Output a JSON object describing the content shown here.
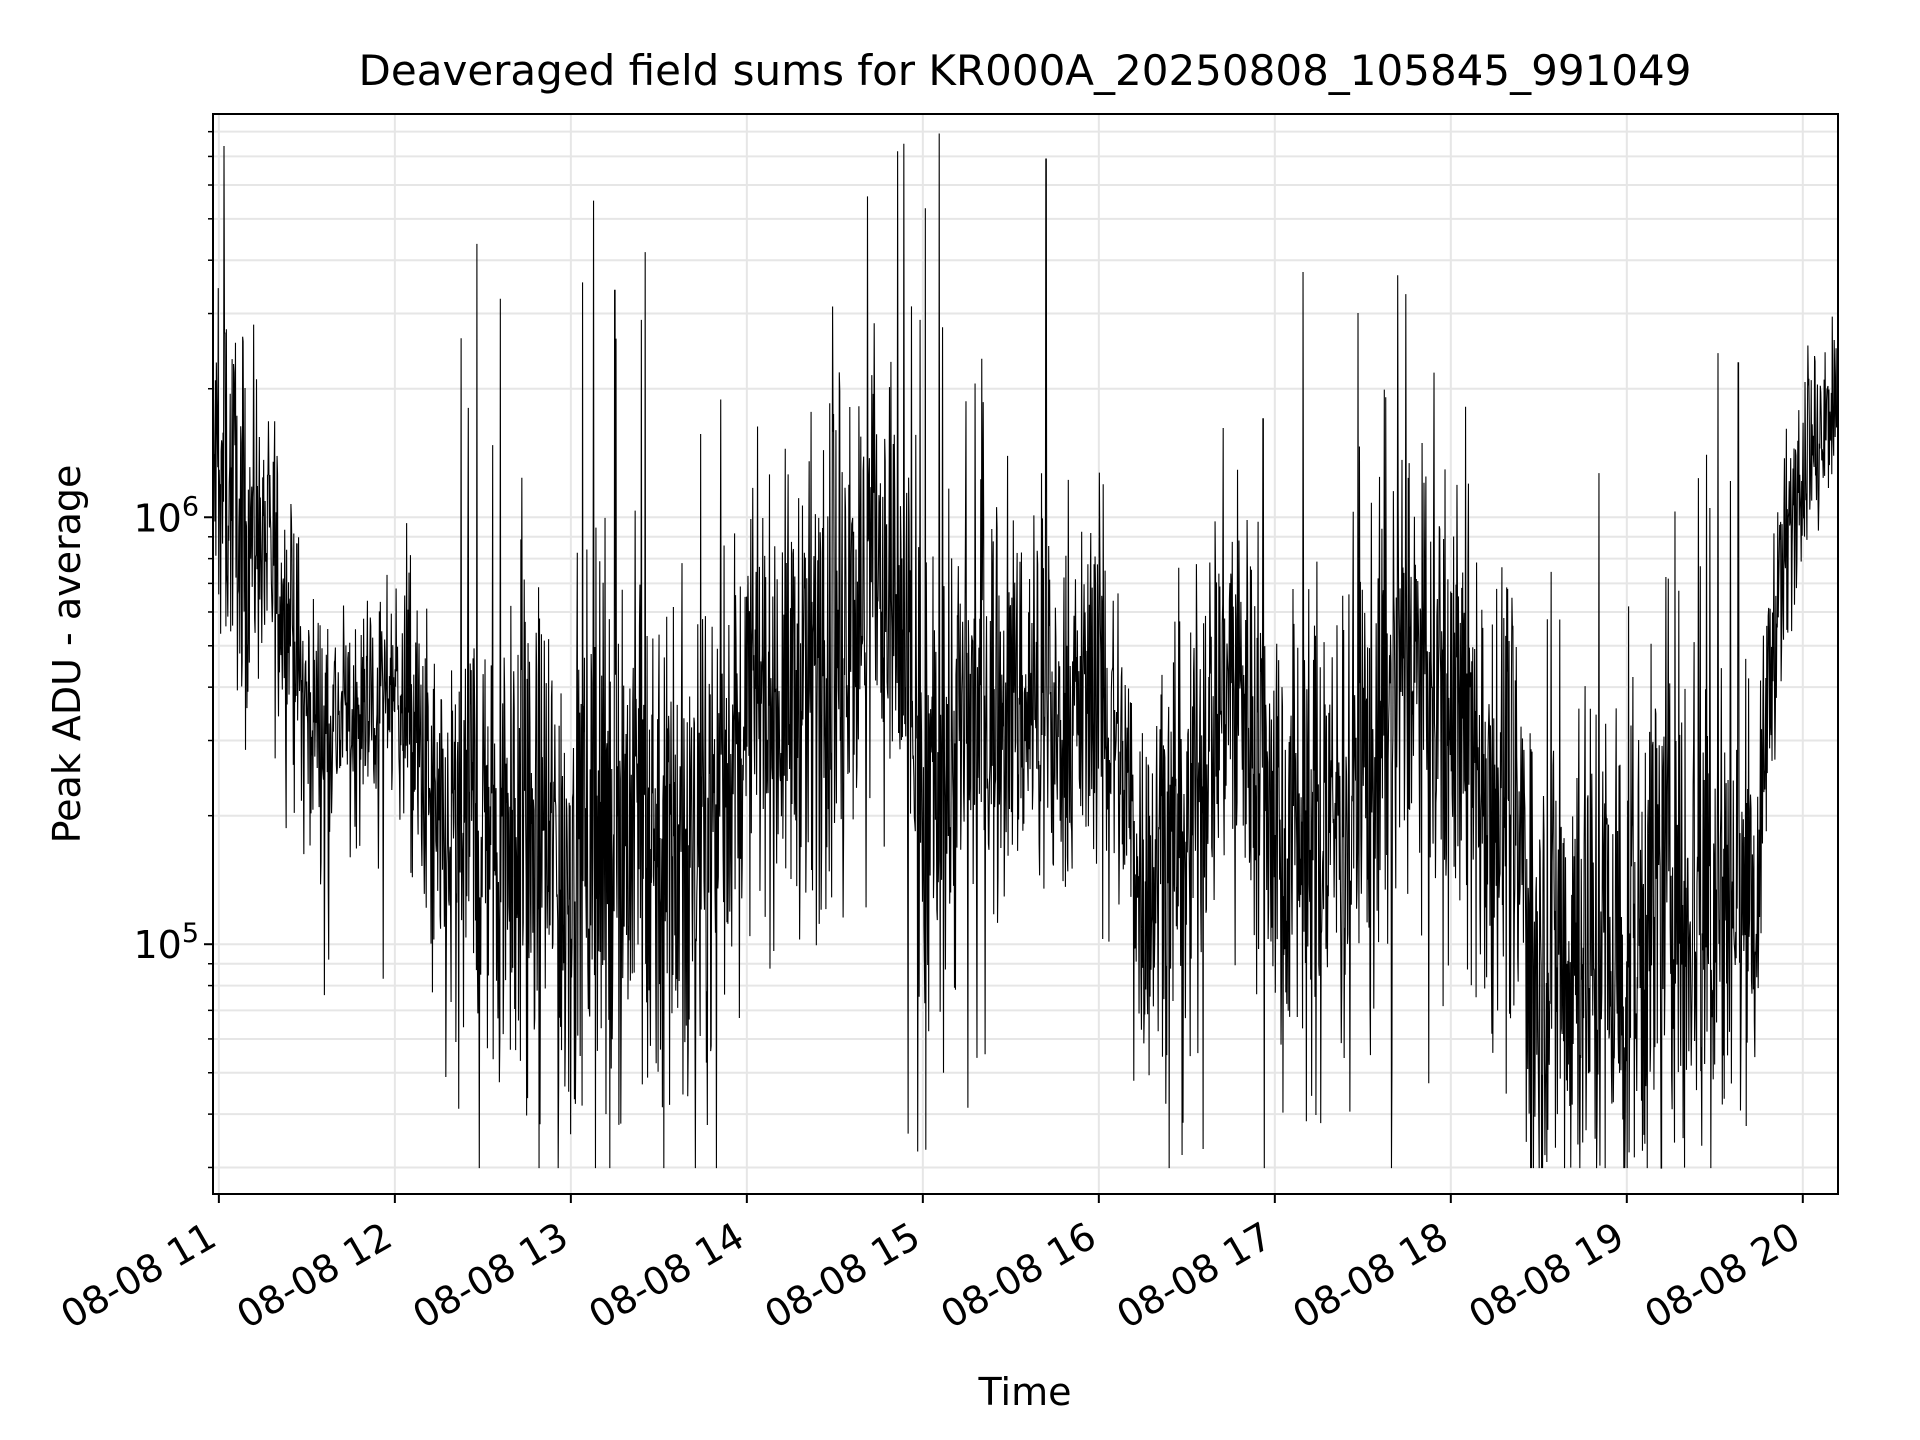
{
  "chart_data": {
    "type": "line",
    "title": "Deaveraged field sums for KR000A_20250808_105845_991049",
    "xlabel": "Time",
    "ylabel": "Peak ADU - average",
    "x_scale": "time",
    "y_scale": "log",
    "xlim": [
      "2025-08-08 10:58",
      "2025-08-08 20:12"
    ],
    "ylim": [
      26000,
      8800000
    ],
    "x_tick_labels": [
      "08-08 11",
      "08-08 12",
      "08-08 13",
      "08-08 14",
      "08-08 15",
      "08-08 16",
      "08-08 17",
      "08-08 18",
      "08-08 19",
      "08-08 20"
    ],
    "y_tick_labels": [
      {
        "base": "10",
        "exp": "5"
      },
      {
        "base": "10",
        "exp": "6"
      }
    ],
    "grid": true,
    "legend": "none",
    "line_color": "#000000",
    "series": [
      {
        "x": [
          "2025-08-08 10:58",
          "2025-08-08 11:15",
          "2025-08-08 11:30",
          "2025-08-08 11:45",
          "2025-08-08 12:00",
          "2025-08-08 12:15",
          "2025-08-08 12:30",
          "2025-08-08 12:45",
          "2025-08-08 13:00",
          "2025-08-08 13:15",
          "2025-08-08 13:30",
          "2025-08-08 13:45",
          "2025-08-08 14:00",
          "2025-08-08 14:15",
          "2025-08-08 14:30",
          "2025-08-08 14:45",
          "2025-08-08 15:00",
          "2025-08-08 15:15",
          "2025-08-08 15:30",
          "2025-08-08 15:45",
          "2025-08-08 16:00",
          "2025-08-08 16:15",
          "2025-08-08 16:30",
          "2025-08-08 16:45",
          "2025-08-08 17:00",
          "2025-08-08 17:15",
          "2025-08-08 17:30",
          "2025-08-08 17:45",
          "2025-08-08 18:00",
          "2025-08-08 18:15",
          "2025-08-08 18:30",
          "2025-08-08 18:45",
          "2025-08-08 19:00",
          "2025-08-08 19:15",
          "2025-08-08 19:30",
          "2025-08-08 19:45",
          "2025-08-08 20:00",
          "2025-08-08 20:12"
        ],
        "y": [
          1300000,
          900000,
          350000,
          330000,
          420000,
          150000,
          200000,
          180000,
          150000,
          200000,
          180000,
          160000,
          350000,
          380000,
          500000,
          800000,
          200000,
          320000,
          380000,
          320000,
          400000,
          130000,
          180000,
          450000,
          200000,
          180000,
          250000,
          450000,
          320000,
          250000,
          90000,
          100000,
          90000,
          150000,
          120000,
          130000,
          1300000,
          1900000
        ],
        "spread": [
          2.5,
          2.2,
          1.8,
          1.7,
          1.6,
          2.8,
          3.5,
          3.5,
          3.8,
          4.0,
          3.8,
          3.2,
          2.5,
          3.0,
          3.5,
          3.0,
          4.0,
          3.2,
          2.5,
          2.3,
          2.2,
          2.5,
          2.8,
          2.8,
          3.2,
          3.5,
          3.5,
          3.0,
          3.0,
          3.5,
          3.5,
          4.0,
          4.0,
          4.2,
          4.0,
          2.0,
          1.5,
          1.5
        ],
        "spikes": [
          {
            "x": "2025-08-08 11:02",
            "y": 2700000
          },
          {
            "x": "2025-08-08 11:36",
            "y": 76000
          },
          {
            "x": "2025-08-08 11:56",
            "y": 83000
          },
          {
            "x": "2025-08-08 12:36",
            "y": 3250000
          },
          {
            "x": "2025-08-08 13:04",
            "y": 3550000
          },
          {
            "x": "2025-08-08 13:12",
            "y": 40000
          },
          {
            "x": "2025-08-08 13:15",
            "y": 3400000
          },
          {
            "x": "2025-08-08 13:17",
            "y": 38000
          },
          {
            "x": "2025-08-08 13:24",
            "y": 2900000
          },
          {
            "x": "2025-08-08 14:55",
            "y": 36000
          },
          {
            "x": "2025-08-08 14:59",
            "y": 2900000
          },
          {
            "x": "2025-08-08 15:01",
            "y": 33000
          },
          {
            "x": "2025-08-08 15:42",
            "y": 6900000
          },
          {
            "x": "2025-08-08 16:56",
            "y": 1700000
          },
          {
            "x": "2025-08-08 18:47",
            "y": 50000
          },
          {
            "x": "2025-08-08 19:05",
            "y": 43000
          },
          {
            "x": "2025-08-08 19:38",
            "y": 2300000
          },
          {
            "x": "2025-08-08 20:10",
            "y": 2950000
          }
        ]
      }
    ]
  }
}
